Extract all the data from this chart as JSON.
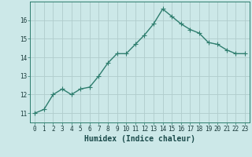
{
  "x": [
    0,
    1,
    2,
    3,
    4,
    5,
    6,
    7,
    8,
    9,
    10,
    11,
    12,
    13,
    14,
    15,
    16,
    17,
    18,
    19,
    20,
    21,
    22,
    23
  ],
  "y": [
    11.0,
    11.2,
    12.0,
    12.3,
    12.0,
    12.3,
    12.4,
    13.0,
    13.7,
    14.2,
    14.2,
    14.7,
    15.2,
    15.8,
    16.6,
    16.2,
    15.8,
    15.5,
    15.3,
    14.8,
    14.7,
    14.4,
    14.2,
    14.2
  ],
  "line_color": "#2e7d6e",
  "marker": "D",
  "marker_size": 2.2,
  "bg_color": "#cce8e8",
  "xlabel": "Humidex (Indice chaleur)",
  "ylim": [
    10.5,
    17.0
  ],
  "xlim": [
    -0.5,
    23.5
  ],
  "yticks": [
    11,
    12,
    13,
    14,
    15,
    16
  ],
  "xticks": [
    0,
    1,
    2,
    3,
    4,
    5,
    6,
    7,
    8,
    9,
    10,
    11,
    12,
    13,
    14,
    15,
    16,
    17,
    18,
    19,
    20,
    21,
    22,
    23
  ],
  "tick_fontsize": 5.5,
  "xlabel_fontsize": 7.0,
  "line_width": 1.0,
  "grid_color": "#b0cccc"
}
